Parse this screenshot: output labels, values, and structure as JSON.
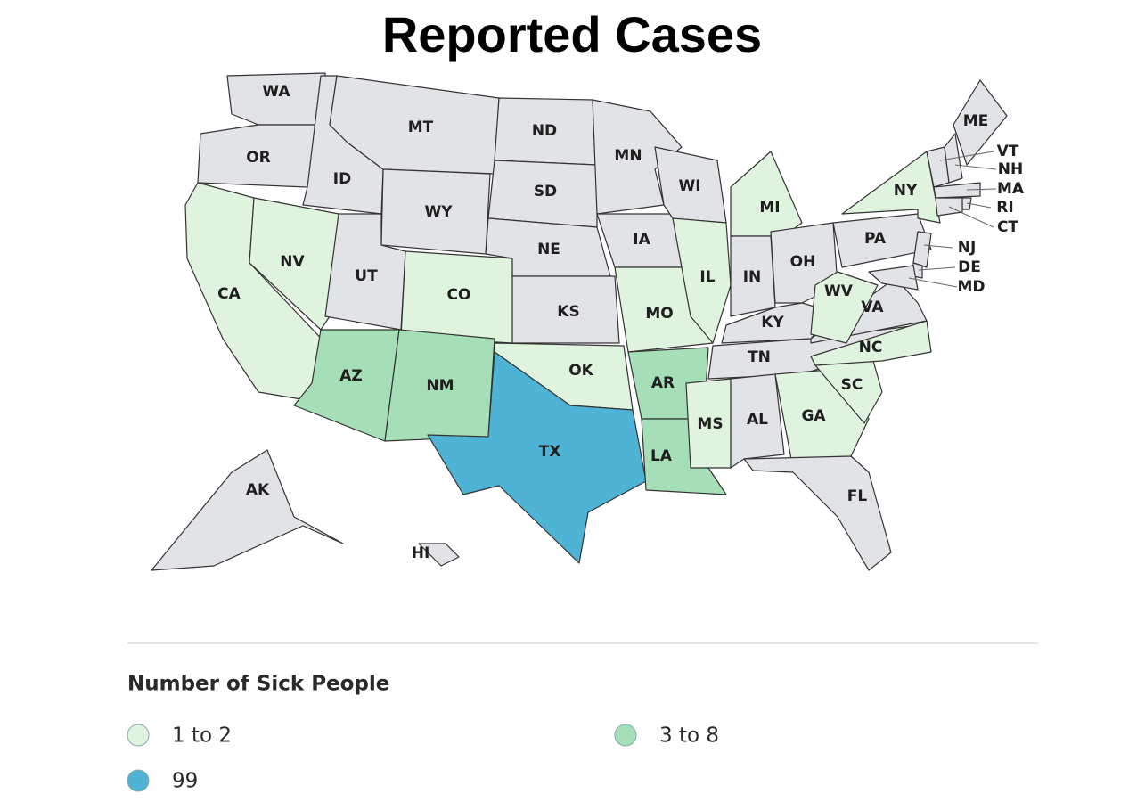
{
  "title": "Reported Cases",
  "map": {
    "base_color": "#e2e3e6",
    "states": [
      "WA",
      "OR",
      "CA",
      "NV",
      "ID",
      "MT",
      "WY",
      "UT",
      "CO",
      "AZ",
      "NM",
      "ND",
      "SD",
      "NE",
      "KS",
      "OK",
      "TX",
      "MN",
      "IA",
      "MO",
      "AR",
      "LA",
      "WI",
      "IL",
      "MI",
      "IN",
      "OH",
      "KY",
      "TN",
      "MS",
      "AL",
      "GA",
      "FL",
      "SC",
      "NC",
      "VA",
      "WV",
      "PA",
      "NY",
      "ME",
      "VT",
      "NH",
      "MA",
      "RI",
      "CT",
      "NJ",
      "DE",
      "MD",
      "AK",
      "HI"
    ]
  },
  "legend": {
    "title": "Number of Sick People",
    "items": [
      {
        "label": "1 to 2",
        "color": "#dff3df",
        "states": [
          "CA",
          "NV",
          "CO",
          "OK",
          "MO",
          "IL",
          "MS",
          "MI",
          "WV",
          "NY",
          "NC",
          "SC",
          "GA"
        ]
      },
      {
        "label": "3 to 8",
        "color": "#a6dfb7",
        "states": [
          "AZ",
          "NM",
          "AR",
          "LA"
        ]
      },
      {
        "label": "99",
        "color": "#4fb3d6",
        "states": [
          "TX"
        ]
      }
    ]
  }
}
